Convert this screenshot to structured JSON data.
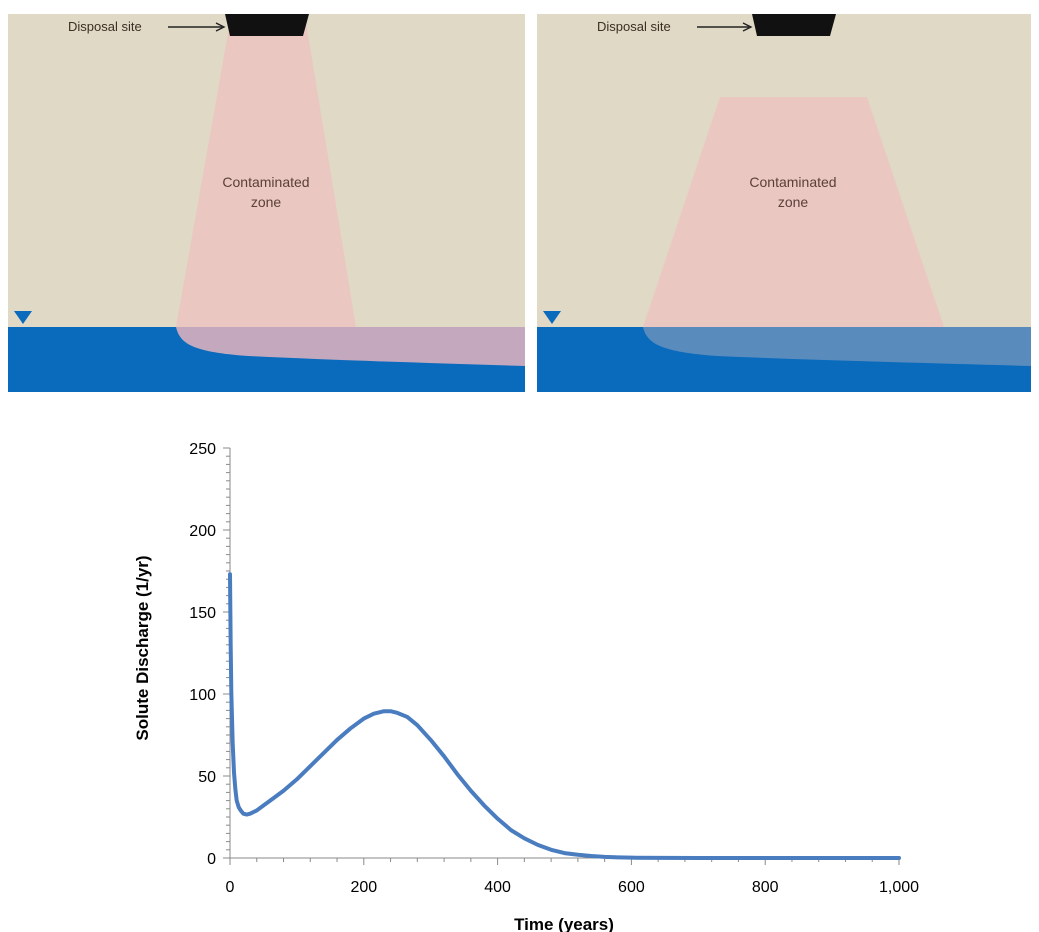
{
  "panels": [
    {
      "site_label": "Disposal site",
      "zone_label_line1": "Contaminated",
      "zone_label_line2": "zone"
    },
    {
      "site_label": "Disposal site",
      "zone_label_line1": "Contaminated",
      "zone_label_line2": "zone"
    }
  ],
  "colors": {
    "soil": "#e0d9c6",
    "water": "#0a6bbd",
    "plume": "#ebc7c2",
    "plume_in_water_left": "#c4a8be",
    "plume_in_water_right": "#5a8bbd",
    "site": "#111111",
    "series": "#4a7cc0"
  },
  "chart_data": {
    "type": "line",
    "xlabel": "Time (years)",
    "ylabel": "Solute Discharge (1/yr)",
    "xlim": [
      0,
      1000
    ],
    "ylim": [
      0,
      250
    ],
    "x_ticks": [
      0,
      200,
      400,
      600,
      800,
      1000
    ],
    "x_tick_labels": [
      "0",
      "200",
      "400",
      "600",
      "800",
      "1,000"
    ],
    "y_ticks": [
      0,
      50,
      100,
      150,
      200,
      250
    ],
    "y_tick_labels": [
      "0",
      "50",
      "100",
      "150",
      "200",
      "250"
    ],
    "grid": false,
    "series": [
      {
        "x": [
          0,
          1,
          2,
          4,
          6,
          8,
          10,
          13,
          16,
          20,
          25,
          30,
          40,
          50,
          60,
          80,
          100,
          120,
          140,
          160,
          180,
          200,
          215,
          230,
          240,
          250,
          265,
          280,
          300,
          320,
          340,
          360,
          380,
          400,
          420,
          440,
          460,
          480,
          500,
          520,
          540,
          560,
          580,
          600,
          650,
          700,
          800,
          900,
          1000
        ],
        "y": [
          173,
          130,
          100,
          70,
          52,
          42,
          35,
          31,
          29,
          27,
          26.5,
          27,
          29,
          32,
          35,
          41,
          48,
          56,
          64,
          72,
          79,
          85,
          88,
          89.5,
          89.5,
          88.5,
          86,
          81,
          72,
          62,
          51,
          41,
          32,
          24,
          17,
          12,
          8,
          5,
          3,
          2,
          1.2,
          0.7,
          0.4,
          0.2,
          0.1,
          0,
          0,
          0,
          0
        ]
      }
    ]
  }
}
